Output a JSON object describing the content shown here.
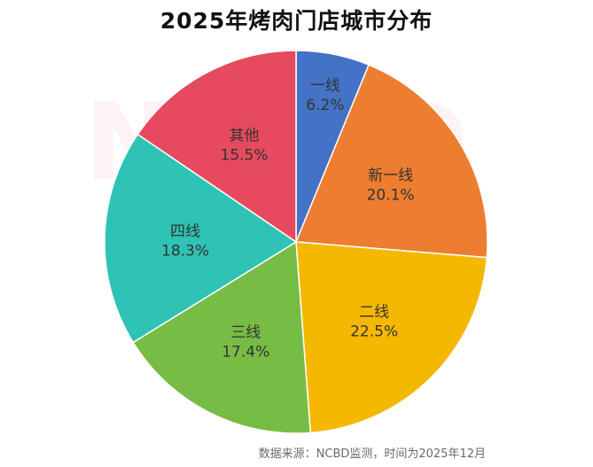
{
  "title": "2025年烤肉门店城市分布",
  "source": "数据来源：NCBD监测，时间为2025年12月",
  "chart_data": {
    "type": "pie",
    "title": "2025年烤肉门店城市分布",
    "start_angle_deg": 0,
    "direction": "clockwise",
    "slices": [
      {
        "name": "一线",
        "value": 6.2,
        "label": "6.2%",
        "color": "#4472C4"
      },
      {
        "name": "新一线",
        "value": 20.1,
        "label": "20.1%",
        "color": "#ED7D31"
      },
      {
        "name": "二线",
        "value": 22.5,
        "label": "22.5%",
        "color": "#F5B800"
      },
      {
        "name": "三线",
        "value": 17.4,
        "label": "17.4%",
        "color": "#77BC45"
      },
      {
        "name": "四线",
        "value": 18.3,
        "label": "18.3%",
        "color": "#2EC3B4"
      },
      {
        "name": "其他",
        "value": 15.5,
        "label": "15.5%",
        "color": "#E54A5E"
      }
    ]
  }
}
